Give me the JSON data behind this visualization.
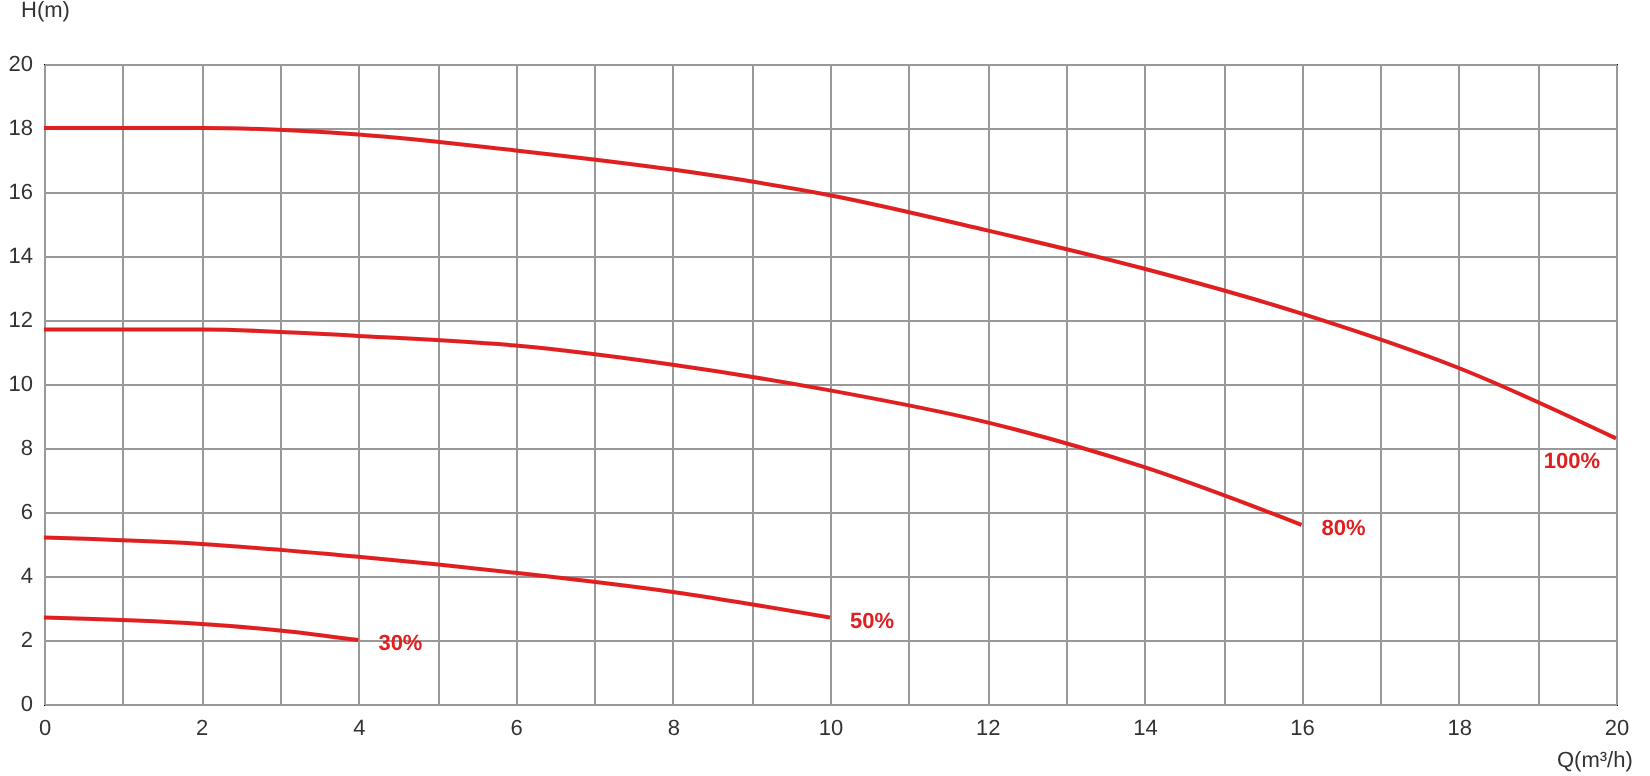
{
  "chart_data": {
    "type": "line",
    "xlabel": "Q(m³/h)",
    "ylabel": "H(m)",
    "xlim": [
      0,
      20
    ],
    "ylim": [
      0,
      20
    ],
    "xticks": [
      0,
      {
        "value": 1,
        "label": null
      },
      2,
      {
        "value": 3,
        "label": null
      },
      4,
      {
        "value": 5,
        "label": null
      },
      6,
      {
        "value": 7,
        "label": null
      },
      8,
      {
        "value": 9,
        "label": null
      },
      10,
      {
        "value": 11,
        "label": null
      },
      12,
      {
        "value": 13,
        "label": null
      },
      14,
      {
        "value": 15,
        "label": null
      },
      16,
      {
        "value": 17,
        "label": null
      },
      18,
      {
        "value": 19,
        "label": null
      },
      20
    ],
    "yticks": [
      0,
      2,
      4,
      6,
      8,
      10,
      12,
      14,
      16,
      18,
      20
    ],
    "grid": true,
    "legend": false,
    "marker": "none",
    "line_style": "solid",
    "series": [
      {
        "name": "100%",
        "color": "#e02020",
        "x": [
          0,
          2,
          4,
          6,
          8,
          10,
          12,
          14,
          16,
          18,
          20
        ],
        "values": [
          18,
          18,
          17.8,
          17.3,
          16.7,
          15.9,
          14.8,
          13.6,
          12.2,
          10.5,
          8.3
        ]
      },
      {
        "name": "80%",
        "color": "#e02020",
        "x": [
          0,
          2,
          4,
          6,
          8,
          10,
          12,
          14,
          16
        ],
        "values": [
          11.7,
          11.7,
          11.5,
          11.2,
          10.6,
          9.8,
          8.8,
          7.4,
          5.6
        ]
      },
      {
        "name": "50%",
        "color": "#e02020",
        "x": [
          0,
          2,
          4,
          6,
          8,
          10
        ],
        "values": [
          5.2,
          5,
          4.6,
          4.1,
          3.5,
          2.7
        ]
      },
      {
        "name": "30%",
        "color": "#e02020",
        "x": [
          0,
          2,
          3,
          4
        ],
        "values": [
          2.7,
          2.5,
          2.3,
          2
        ]
      }
    ]
  }
}
